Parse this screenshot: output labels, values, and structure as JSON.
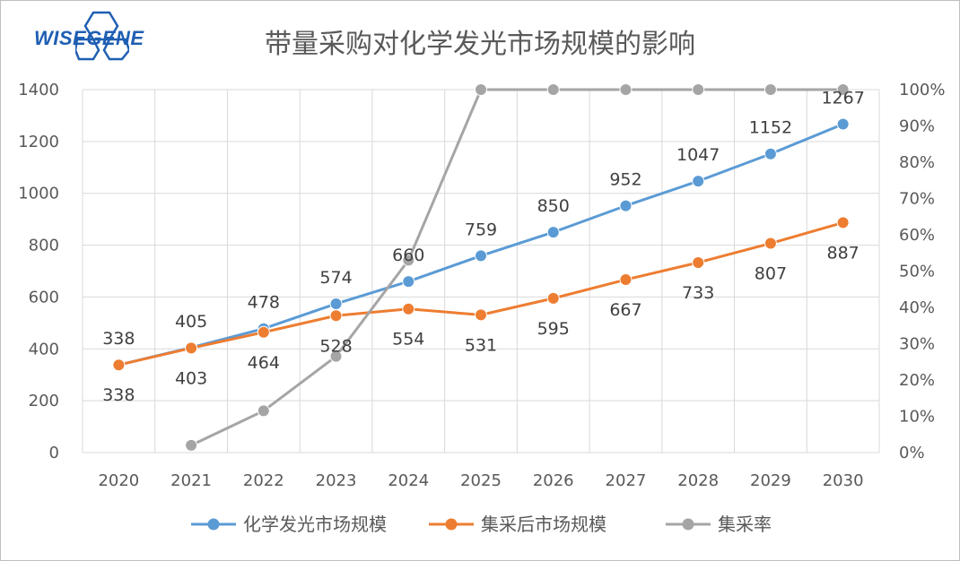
{
  "brand": {
    "logo_text": "WISEGENE"
  },
  "chart_data": {
    "type": "line",
    "title": "带量采购对化学发光市场规模的影响",
    "categories": [
      "2020",
      "2021",
      "2022",
      "2023",
      "2024",
      "2025",
      "2026",
      "2027",
      "2028",
      "2029",
      "2030"
    ],
    "y_left": {
      "min": 0,
      "max": 1400,
      "ticks": [
        "0",
        "200",
        "400",
        "600",
        "800",
        "1000",
        "1200",
        "1400"
      ]
    },
    "y_right": {
      "min": 0,
      "max": 1,
      "ticks": [
        "0%",
        "10%",
        "20%",
        "30%",
        "40%",
        "50%",
        "60%",
        "70%",
        "80%",
        "90%",
        "100%"
      ]
    },
    "grid": true,
    "legend_position": "bottom",
    "series": [
      {
        "name": "化学发光市场规模",
        "axis": "left",
        "color": "#5b9bd5",
        "values": [
          338,
          405,
          478,
          574,
          660,
          759,
          850,
          952,
          1047,
          1152,
          1267
        ],
        "labels": [
          "338",
          "405",
          "478",
          "574",
          "660",
          "759",
          "850",
          "952",
          "1047",
          "1152",
          "1267"
        ]
      },
      {
        "name": "集采后市场规模",
        "axis": "left",
        "color": "#ed7d31",
        "values": [
          338,
          403,
          464,
          528,
          554,
          531,
          595,
          667,
          733,
          807,
          887
        ],
        "labels": [
          "338",
          "403",
          "464",
          "528",
          "554",
          "531",
          "595",
          "667",
          "733",
          "807",
          "887"
        ]
      },
      {
        "name": "集采率",
        "axis": "right",
        "color": "#a5a5a5",
        "values": [
          null,
          0.02,
          0.115,
          0.265,
          0.53,
          1.0,
          1.0,
          1.0,
          1.0,
          1.0,
          1.0
        ],
        "labels": []
      }
    ]
  }
}
